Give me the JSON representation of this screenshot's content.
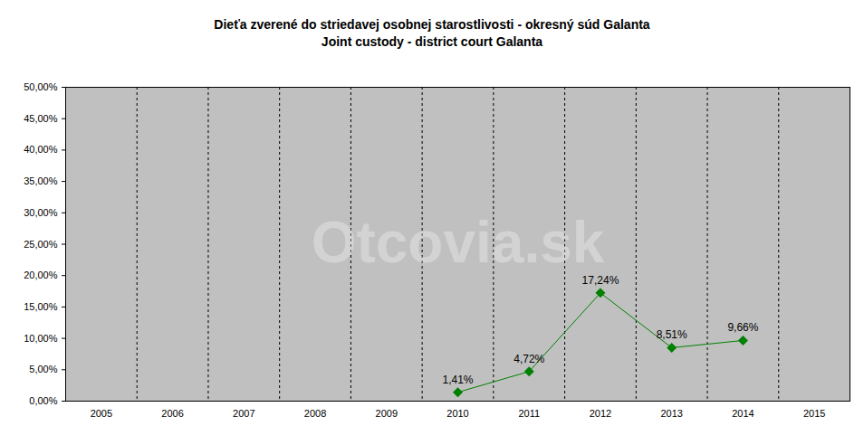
{
  "chart_data": {
    "type": "line",
    "title": "Dieťa zverené do striedavej osobnej starostlivosti - okresný súd Galanta",
    "subtitle": "Joint custody - district court Galanta",
    "annotations": [
      "Otcovia.sk"
    ],
    "categories": [
      "2005",
      "2006",
      "2007",
      "2008",
      "2009",
      "2010",
      "2011",
      "2012",
      "2013",
      "2014",
      "2015"
    ],
    "values": [
      null,
      null,
      null,
      null,
      null,
      1.41,
      4.72,
      17.24,
      8.51,
      9.66,
      null
    ],
    "value_labels": [
      null,
      null,
      null,
      null,
      null,
      "1,41%",
      "4,72%",
      "17,24%",
      "8,51%",
      "9,66%",
      null
    ],
    "color": "#008000",
    "marker": "diamond",
    "ylim": [
      0,
      50
    ],
    "yticks": [
      {
        "value": 0,
        "label": "0,00%"
      },
      {
        "value": 5,
        "label": "5,00%"
      },
      {
        "value": 10,
        "label": "10,00%"
      },
      {
        "value": 15,
        "label": "15,00%"
      },
      {
        "value": 20,
        "label": "20,00%"
      },
      {
        "value": 25,
        "label": "25,00%"
      },
      {
        "value": 30,
        "label": "30,00%"
      },
      {
        "value": 35,
        "label": "35,00%"
      },
      {
        "value": 40,
        "label": "40,00%"
      },
      {
        "value": 45,
        "label": "45,00%"
      },
      {
        "value": 50,
        "label": "50,00%"
      }
    ],
    "grid": true,
    "data_labels": true
  }
}
